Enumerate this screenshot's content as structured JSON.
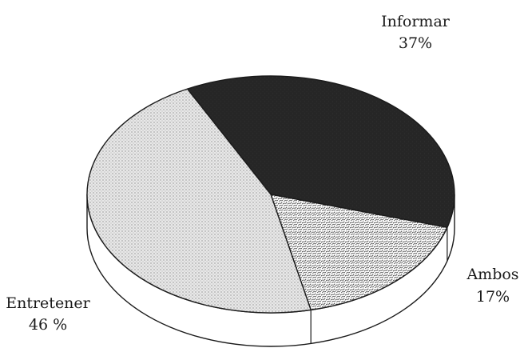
{
  "chart_data": {
    "type": "pie",
    "style": "3d-tilted",
    "slices": [
      {
        "label": "Informar",
        "value": 37,
        "value_label": "37%",
        "fill": "#262626",
        "pattern": "speckled-solid"
      },
      {
        "label": "Ambos",
        "value": 17,
        "value_label": "17%",
        "fill": "#ffffff",
        "pattern": "wavy-hatch"
      },
      {
        "label": "Entretener",
        "value": 46,
        "value_label": "46 %",
        "fill": "#dadada",
        "pattern": "fine-dots"
      }
    ],
    "label_placement": "outside",
    "edge_color": "#1a1a1a"
  }
}
